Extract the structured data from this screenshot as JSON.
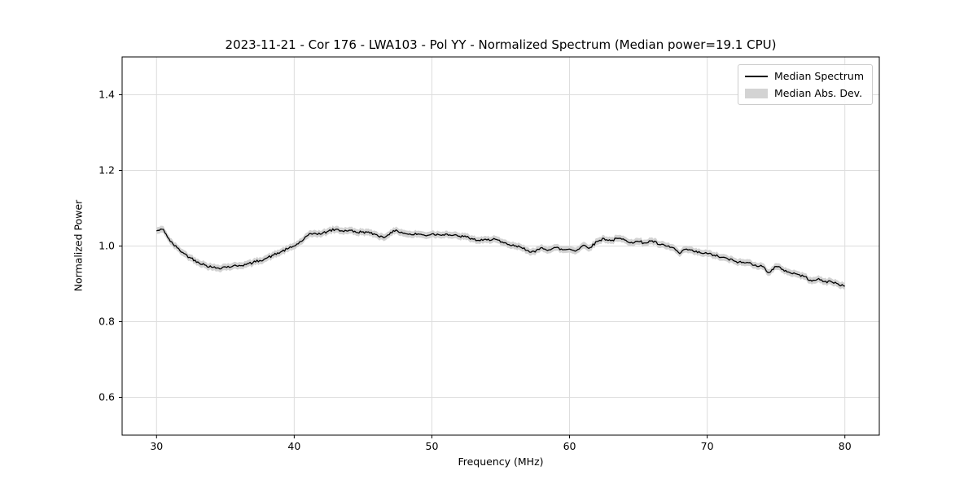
{
  "chart_data": {
    "type": "line",
    "title": "2023-11-21 - Cor 176 - LWA103 - Pol YY - Normalized Spectrum (Median power=19.1 CPU)",
    "xlabel": "Frequency (MHz)",
    "ylabel": "Normalized Power",
    "xlim": [
      27.5,
      82.5
    ],
    "ylim": [
      0.5,
      1.5
    ],
    "xticks": [
      30,
      40,
      50,
      60,
      70,
      80
    ],
    "yticks": [
      0.6,
      0.8,
      1.0,
      1.2,
      1.4
    ],
    "grid": true,
    "grid_color": "#dddddd",
    "frame_color": "#000000",
    "background": "#ffffff",
    "line_color": "#000000",
    "band_color": "#d3d3d3",
    "band_halfwidth": 0.009,
    "noise_amplitude": 0.0035,
    "legend": [
      {
        "label": "Median Spectrum",
        "type": "line",
        "color": "#000000"
      },
      {
        "label": "Median Abs. Dev.",
        "type": "band",
        "color": "#d3d3d3"
      }
    ],
    "series": [
      {
        "name": "Median Spectrum",
        "x": [
          30.0,
          30.5,
          31.0,
          31.5,
          32.0,
          32.5,
          33.0,
          33.5,
          34.0,
          34.5,
          35.0,
          35.5,
          36.0,
          36.5,
          37.0,
          37.5,
          38.0,
          38.5,
          39.0,
          39.5,
          40.0,
          40.5,
          41.0,
          41.5,
          42.0,
          42.5,
          43.0,
          43.5,
          44.0,
          44.5,
          45.0,
          45.5,
          46.0,
          46.5,
          47.0,
          47.5,
          48.0,
          48.5,
          49.0,
          49.5,
          50.0,
          50.5,
          51.0,
          51.5,
          52.0,
          52.5,
          53.0,
          53.5,
          54.0,
          54.5,
          55.0,
          55.5,
          56.0,
          56.5,
          57.0,
          57.5,
          58.0,
          58.5,
          59.0,
          59.5,
          60.0,
          60.5,
          61.0,
          61.5,
          62.0,
          62.5,
          63.0,
          63.5,
          64.0,
          64.5,
          65.0,
          65.5,
          66.0,
          66.5,
          67.0,
          67.5,
          68.0,
          68.5,
          69.0,
          69.5,
          70.0,
          70.5,
          71.0,
          71.5,
          72.0,
          72.5,
          73.0,
          73.5,
          74.0,
          74.5,
          75.0,
          75.5,
          76.0,
          76.5,
          77.0,
          77.5,
          78.0,
          78.5,
          79.0,
          79.5,
          80.0
        ],
        "y": [
          1.04,
          1.044,
          1.012,
          0.995,
          0.98,
          0.968,
          0.958,
          0.95,
          0.944,
          0.942,
          0.945,
          0.946,
          0.949,
          0.951,
          0.956,
          0.962,
          0.968,
          0.976,
          0.984,
          0.992,
          1.0,
          1.012,
          1.028,
          1.034,
          1.032,
          1.04,
          1.044,
          1.04,
          1.042,
          1.036,
          1.038,
          1.034,
          1.03,
          1.022,
          1.036,
          1.04,
          1.034,
          1.03,
          1.032,
          1.028,
          1.032,
          1.03,
          1.032,
          1.028,
          1.026,
          1.024,
          1.018,
          1.014,
          1.016,
          1.02,
          1.01,
          1.004,
          1.0,
          0.996,
          0.988,
          0.984,
          0.996,
          0.99,
          0.996,
          0.99,
          0.992,
          0.988,
          1.002,
          0.996,
          1.012,
          1.02,
          1.014,
          1.02,
          1.016,
          1.01,
          1.012,
          1.008,
          1.014,
          1.004,
          1.0,
          0.996,
          0.98,
          0.992,
          0.986,
          0.982,
          0.98,
          0.976,
          0.97,
          0.966,
          0.96,
          0.956,
          0.956,
          0.95,
          0.946,
          0.93,
          0.946,
          0.938,
          0.93,
          0.926,
          0.92,
          0.91,
          0.912,
          0.906,
          0.906,
          0.9,
          0.894
        ]
      }
    ]
  }
}
